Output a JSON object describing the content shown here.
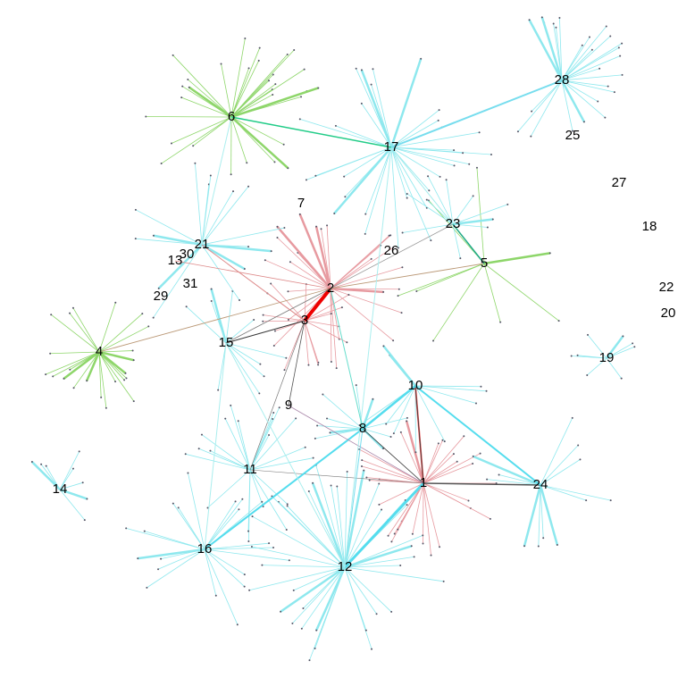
{
  "nodes": [
    {
      "label": "1"
    },
    {
      "label": "2"
    },
    {
      "label": "3"
    },
    {
      "label": "4"
    },
    {
      "label": "5"
    },
    {
      "label": "6"
    },
    {
      "label": "7"
    },
    {
      "label": "8"
    },
    {
      "label": "9"
    },
    {
      "label": "10"
    },
    {
      "label": "11"
    },
    {
      "label": "12"
    },
    {
      "label": "13"
    },
    {
      "label": "14"
    },
    {
      "label": "15"
    },
    {
      "label": "16"
    },
    {
      "label": "17"
    },
    {
      "label": "18"
    },
    {
      "label": "19"
    },
    {
      "label": "20"
    },
    {
      "label": "21"
    },
    {
      "label": "22"
    },
    {
      "label": "23"
    },
    {
      "label": "24"
    },
    {
      "label": "25"
    },
    {
      "label": "26"
    },
    {
      "label": "27"
    },
    {
      "label": "28"
    },
    {
      "label": "29"
    },
    {
      "label": "30"
    },
    {
      "label": "31"
    }
  ]
}
